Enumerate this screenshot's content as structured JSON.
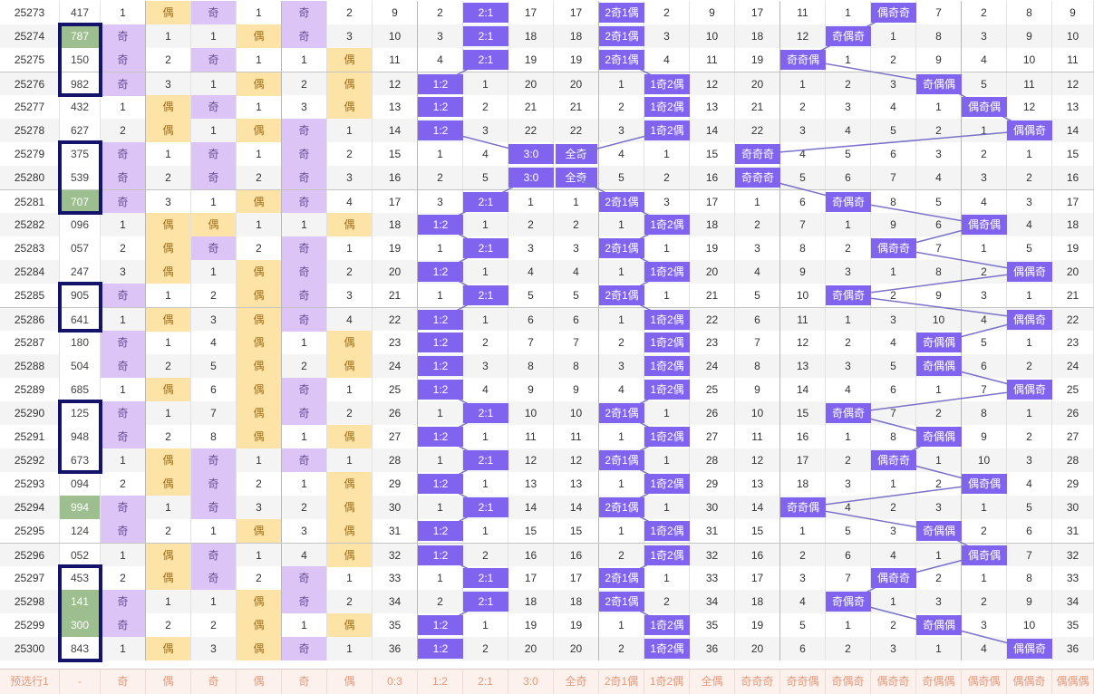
{
  "colors": {
    "odd_bg": "#dcc4f6",
    "even_bg": "#fde3a6",
    "highlight": "#9dbf8f",
    "chip": "#8064f0",
    "box": "#13136b",
    "predict_text": "#e39a7a"
  },
  "rows": [
    {
      "issue": "25273",
      "num": "417",
      "hl": false,
      "v": [
        "1",
        "偶",
        "奇",
        "1",
        "奇",
        "2"
      ],
      "s": [
        "9",
        "2",
        "2:1",
        "17",
        "17",
        "2奇1偶",
        "2",
        "9",
        "17",
        "11",
        "1",
        "偶奇奇",
        "7",
        "2",
        "8",
        "9"
      ]
    },
    {
      "issue": "25274",
      "num": "787",
      "hl": true,
      "v": [
        "奇",
        "1",
        "1",
        "偶",
        "奇",
        "3"
      ],
      "s": [
        "10",
        "3",
        "2:1",
        "18",
        "18",
        "2奇1偶",
        "3",
        "10",
        "18",
        "12",
        "奇偶奇",
        "1",
        "8",
        "3",
        "9",
        "10"
      ]
    },
    {
      "issue": "25275",
      "num": "150",
      "hl": false,
      "v": [
        "奇",
        "2",
        "奇",
        "1",
        "1",
        "偶"
      ],
      "s": [
        "11",
        "4",
        "2:1",
        "19",
        "19",
        "2奇1偶",
        "4",
        "11",
        "19",
        "奇奇偶",
        "1",
        "2",
        "9",
        "4",
        "10",
        "11"
      ]
    },
    {
      "issue": "25276",
      "num": "982",
      "hl": false,
      "v": [
        "奇",
        "3",
        "1",
        "偶",
        "2",
        "偶"
      ],
      "s": [
        "12",
        "1:2",
        "1",
        "20",
        "20",
        "1",
        "1奇2偶",
        "12",
        "20",
        "1",
        "2",
        "3",
        "奇偶偶",
        "5",
        "11",
        "12"
      ]
    },
    {
      "issue": "25277",
      "num": "432",
      "hl": false,
      "v": [
        "1",
        "偶",
        "奇",
        "1",
        "3",
        "偶"
      ],
      "s": [
        "13",
        "1:2",
        "2",
        "21",
        "21",
        "2",
        "1奇2偶",
        "13",
        "21",
        "2",
        "3",
        "4",
        "1",
        "偶奇偶",
        "12",
        "13"
      ]
    },
    {
      "issue": "25278",
      "num": "627",
      "hl": false,
      "v": [
        "2",
        "偶",
        "1",
        "偶",
        "奇",
        "1"
      ],
      "s": [
        "14",
        "1:2",
        "3",
        "22",
        "22",
        "3",
        "1奇2偶",
        "14",
        "22",
        "3",
        "4",
        "5",
        "2",
        "1",
        "偶偶奇",
        "14"
      ]
    },
    {
      "issue": "25279",
      "num": "375",
      "hl": false,
      "v": [
        "奇",
        "1",
        "奇",
        "1",
        "奇",
        "2"
      ],
      "s": [
        "15",
        "1",
        "4",
        "3:0",
        "全奇",
        "4",
        "1",
        "15",
        "奇奇奇",
        "4",
        "5",
        "6",
        "3",
        "2",
        "1",
        "15"
      ]
    },
    {
      "issue": "25280",
      "num": "539",
      "hl": false,
      "v": [
        "奇",
        "2",
        "奇",
        "2",
        "奇",
        "3"
      ],
      "s": [
        "16",
        "2",
        "5",
        "3:0",
        "全奇",
        "5",
        "2",
        "16",
        "奇奇奇",
        "5",
        "6",
        "7",
        "4",
        "3",
        "2",
        "16"
      ]
    },
    {
      "issue": "25281",
      "num": "707",
      "hl": true,
      "v": [
        "奇",
        "3",
        "1",
        "偶",
        "奇",
        "4"
      ],
      "s": [
        "17",
        "3",
        "2:1",
        "1",
        "1",
        "2奇1偶",
        "3",
        "17",
        "1",
        "6",
        "奇偶奇",
        "8",
        "5",
        "4",
        "3",
        "17"
      ]
    },
    {
      "issue": "25282",
      "num": "096",
      "hl": false,
      "v": [
        "1",
        "偶",
        "偶",
        "1",
        "1",
        "偶"
      ],
      "s": [
        "18",
        "1:2",
        "1",
        "2",
        "2",
        "1",
        "1奇2偶",
        "18",
        "2",
        "7",
        "1",
        "9",
        "6",
        "偶奇偶",
        "4",
        "18"
      ]
    },
    {
      "issue": "25283",
      "num": "057",
      "hl": false,
      "v": [
        "2",
        "偶",
        "奇",
        "2",
        "奇",
        "1"
      ],
      "s": [
        "19",
        "1",
        "2:1",
        "3",
        "3",
        "2奇1偶",
        "1",
        "19",
        "3",
        "8",
        "2",
        "偶奇奇",
        "7",
        "1",
        "5",
        "19"
      ]
    },
    {
      "issue": "25284",
      "num": "247",
      "hl": false,
      "v": [
        "3",
        "偶",
        "1",
        "偶",
        "奇",
        "2"
      ],
      "s": [
        "20",
        "1:2",
        "1",
        "4",
        "4",
        "1",
        "1奇2偶",
        "20",
        "4",
        "9",
        "3",
        "1",
        "8",
        "2",
        "偶偶奇",
        "20"
      ]
    },
    {
      "issue": "25285",
      "num": "905",
      "hl": false,
      "v": [
        "奇",
        "1",
        "2",
        "偶",
        "奇",
        "3"
      ],
      "s": [
        "21",
        "1",
        "2:1",
        "5",
        "5",
        "2奇1偶",
        "1",
        "21",
        "5",
        "10",
        "奇偶奇",
        "2",
        "9",
        "3",
        "1",
        "21"
      ]
    },
    {
      "issue": "25286",
      "num": "641",
      "hl": false,
      "v": [
        "1",
        "偶",
        "3",
        "偶",
        "奇",
        "4"
      ],
      "s": [
        "22",
        "1:2",
        "1",
        "6",
        "6",
        "1",
        "1奇2偶",
        "22",
        "6",
        "11",
        "1",
        "3",
        "10",
        "4",
        "偶偶奇",
        "22"
      ]
    },
    {
      "issue": "25287",
      "num": "180",
      "hl": false,
      "v": [
        "奇",
        "1",
        "4",
        "偶",
        "1",
        "偶"
      ],
      "s": [
        "23",
        "1:2",
        "2",
        "7",
        "7",
        "2",
        "1奇2偶",
        "23",
        "7",
        "12",
        "2",
        "4",
        "奇偶偶",
        "5",
        "1",
        "23"
      ]
    },
    {
      "issue": "25288",
      "num": "504",
      "hl": false,
      "v": [
        "奇",
        "2",
        "5",
        "偶",
        "2",
        "偶"
      ],
      "s": [
        "24",
        "1:2",
        "3",
        "8",
        "8",
        "3",
        "1奇2偶",
        "24",
        "8",
        "13",
        "3",
        "5",
        "奇偶偶",
        "6",
        "2",
        "24"
      ]
    },
    {
      "issue": "25289",
      "num": "685",
      "hl": false,
      "v": [
        "1",
        "偶",
        "6",
        "偶",
        "奇",
        "1"
      ],
      "s": [
        "25",
        "1:2",
        "4",
        "9",
        "9",
        "4",
        "1奇2偶",
        "25",
        "9",
        "14",
        "4",
        "6",
        "1",
        "7",
        "偶偶奇",
        "25"
      ]
    },
    {
      "issue": "25290",
      "num": "125",
      "hl": false,
      "v": [
        "奇",
        "1",
        "7",
        "偶",
        "奇",
        "2"
      ],
      "s": [
        "26",
        "1",
        "2:1",
        "10",
        "10",
        "2奇1偶",
        "1",
        "26",
        "10",
        "15",
        "奇偶奇",
        "7",
        "2",
        "8",
        "1",
        "26"
      ]
    },
    {
      "issue": "25291",
      "num": "948",
      "hl": false,
      "v": [
        "奇",
        "2",
        "8",
        "偶",
        "1",
        "偶"
      ],
      "s": [
        "27",
        "1:2",
        "1",
        "11",
        "11",
        "1",
        "1奇2偶",
        "27",
        "11",
        "16",
        "1",
        "8",
        "奇偶偶",
        "9",
        "2",
        "27"
      ]
    },
    {
      "issue": "25292",
      "num": "673",
      "hl": false,
      "v": [
        "1",
        "偶",
        "奇",
        "1",
        "奇",
        "1"
      ],
      "s": [
        "28",
        "1",
        "2:1",
        "12",
        "12",
        "2奇1偶",
        "1",
        "28",
        "12",
        "17",
        "2",
        "偶奇奇",
        "1",
        "10",
        "3",
        "28"
      ]
    },
    {
      "issue": "25293",
      "num": "094",
      "hl": false,
      "v": [
        "2",
        "偶",
        "奇",
        "2",
        "1",
        "偶"
      ],
      "s": [
        "29",
        "1:2",
        "1",
        "13",
        "13",
        "1",
        "1奇2偶",
        "29",
        "13",
        "18",
        "3",
        "1",
        "2",
        "偶奇偶",
        "4",
        "29"
      ]
    },
    {
      "issue": "25294",
      "num": "994",
      "hl": true,
      "v": [
        "奇",
        "1",
        "奇",
        "3",
        "2",
        "偶"
      ],
      "s": [
        "30",
        "1",
        "2:1",
        "14",
        "14",
        "2奇1偶",
        "1",
        "30",
        "14",
        "奇奇偶",
        "4",
        "2",
        "3",
        "1",
        "5",
        "30"
      ]
    },
    {
      "issue": "25295",
      "num": "124",
      "hl": false,
      "v": [
        "奇",
        "2",
        "1",
        "偶",
        "3",
        "偶"
      ],
      "s": [
        "31",
        "1:2",
        "1",
        "15",
        "15",
        "1",
        "1奇2偶",
        "31",
        "15",
        "1",
        "5",
        "3",
        "奇偶偶",
        "2",
        "6",
        "31"
      ]
    },
    {
      "issue": "25296",
      "num": "052",
      "hl": false,
      "v": [
        "1",
        "偶",
        "奇",
        "1",
        "4",
        "偶"
      ],
      "s": [
        "32",
        "1:2",
        "2",
        "16",
        "16",
        "2",
        "1奇2偶",
        "32",
        "16",
        "2",
        "6",
        "4",
        "1",
        "偶奇偶",
        "7",
        "32"
      ]
    },
    {
      "issue": "25297",
      "num": "453",
      "hl": false,
      "v": [
        "2",
        "偶",
        "奇",
        "2",
        "奇",
        "1"
      ],
      "s": [
        "33",
        "1",
        "2:1",
        "17",
        "17",
        "2奇1偶",
        "1",
        "33",
        "17",
        "3",
        "7",
        "偶奇奇",
        "2",
        "1",
        "8",
        "33"
      ]
    },
    {
      "issue": "25298",
      "num": "141",
      "hl": true,
      "v": [
        "奇",
        "1",
        "1",
        "偶",
        "奇",
        "2"
      ],
      "s": [
        "34",
        "2",
        "2:1",
        "18",
        "18",
        "2奇1偶",
        "2",
        "34",
        "18",
        "4",
        "奇偶奇",
        "1",
        "3",
        "2",
        "9",
        "34"
      ]
    },
    {
      "issue": "25299",
      "num": "300",
      "hl": true,
      "v": [
        "奇",
        "2",
        "2",
        "偶",
        "1",
        "偶"
      ],
      "s": [
        "35",
        "1:2",
        "1",
        "19",
        "19",
        "1",
        "1奇2偶",
        "35",
        "19",
        "5",
        "1",
        "2",
        "奇偶偶",
        "3",
        "10",
        "35"
      ]
    },
    {
      "issue": "25300",
      "num": "843",
      "hl": false,
      "v": [
        "1",
        "偶",
        "3",
        "偶",
        "奇",
        "1"
      ],
      "s": [
        "36",
        "1:2",
        "2",
        "20",
        "20",
        "2",
        "1奇2偶",
        "36",
        "20",
        "6",
        "2",
        "3",
        "1",
        "4",
        "偶偶奇",
        "36"
      ]
    }
  ],
  "predict_row": {
    "label": "预选行1",
    "num": "-",
    "cells": [
      "奇",
      "偶",
      "奇",
      "偶",
      "奇",
      "偶",
      "0:3",
      "1:2",
      "2:1",
      "3:0",
      "全奇",
      "2奇1偶",
      "1奇2偶",
      "全偶",
      "奇奇奇",
      "奇奇偶",
      "奇偶奇",
      "偶奇奇",
      "奇偶偶",
      "偶奇偶",
      "偶偶奇",
      "偶偶偶"
    ]
  }
}
